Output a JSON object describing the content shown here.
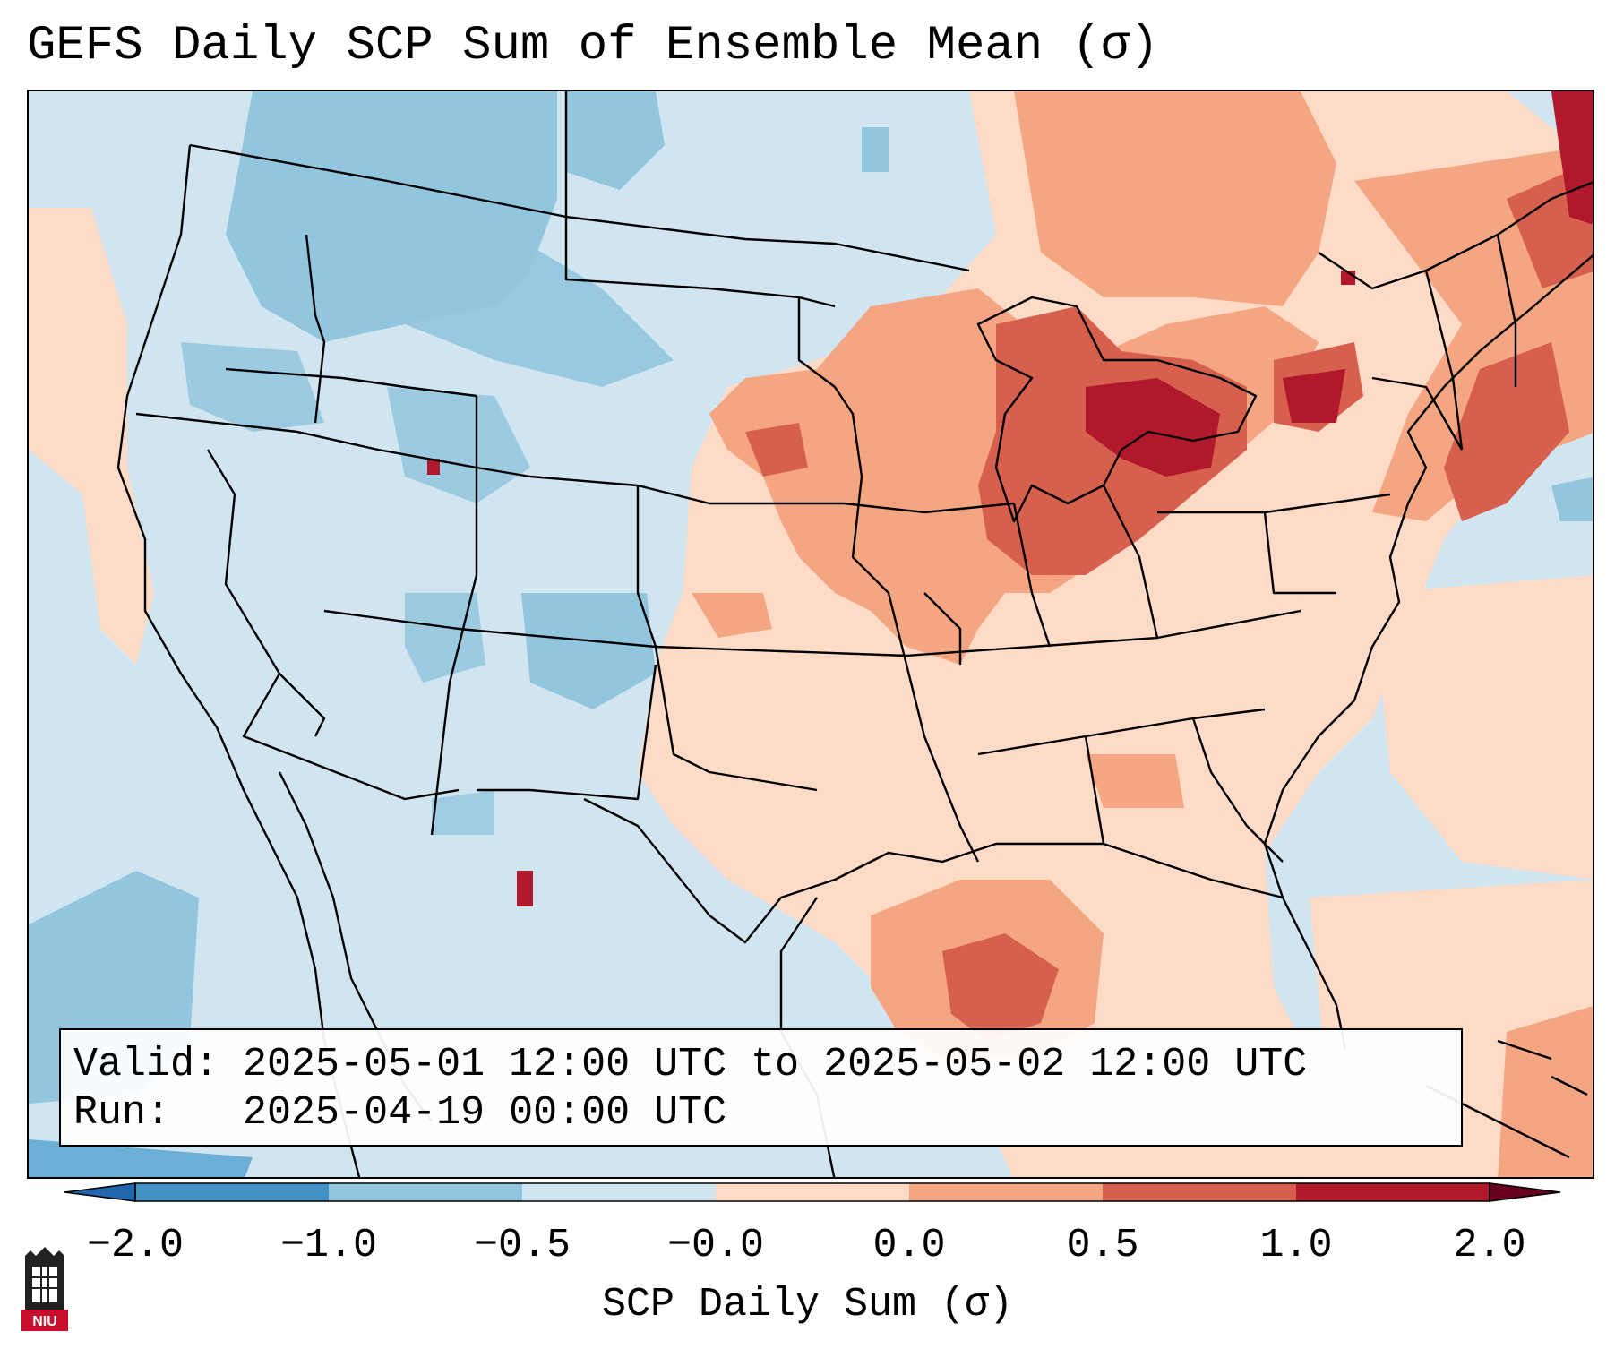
{
  "title": "GEFS Daily SCP Sum of Ensemble Mean (σ)",
  "info": {
    "valid_label": "Valid:",
    "valid_value": "2025-05-01 12:00 UTC to 2025-05-02 12:00 UTC",
    "run_label": "Run:",
    "run_value": "2025-04-19 00:00 UTC"
  },
  "colorbar": {
    "label": "SCP Daily Sum (σ)",
    "ticks": [
      "−2.0",
      "−1.0",
      "−0.5",
      "−0.0",
      "0.0",
      "0.5",
      "1.0",
      "2.0"
    ],
    "colors": [
      "#4292c6",
      "#92c5de",
      "#d1e5f0",
      "#fddbc7",
      "#f4a582",
      "#d6604d",
      "#b2182b"
    ],
    "extend": "both"
  },
  "map": {
    "region": "CONUS",
    "background_color": "#d1e5f0",
    "positive_anomaly_regions": [
      "Great Lakes",
      "Upper Midwest",
      "New England",
      "Gulf of Mexico",
      "Atlantic coast"
    ],
    "negative_anomaly_regions": [
      "Pacific Northwest",
      "Northern Rockies",
      "Colorado",
      "Eastern Pacific"
    ]
  },
  "logo": {
    "text": "NIU"
  }
}
